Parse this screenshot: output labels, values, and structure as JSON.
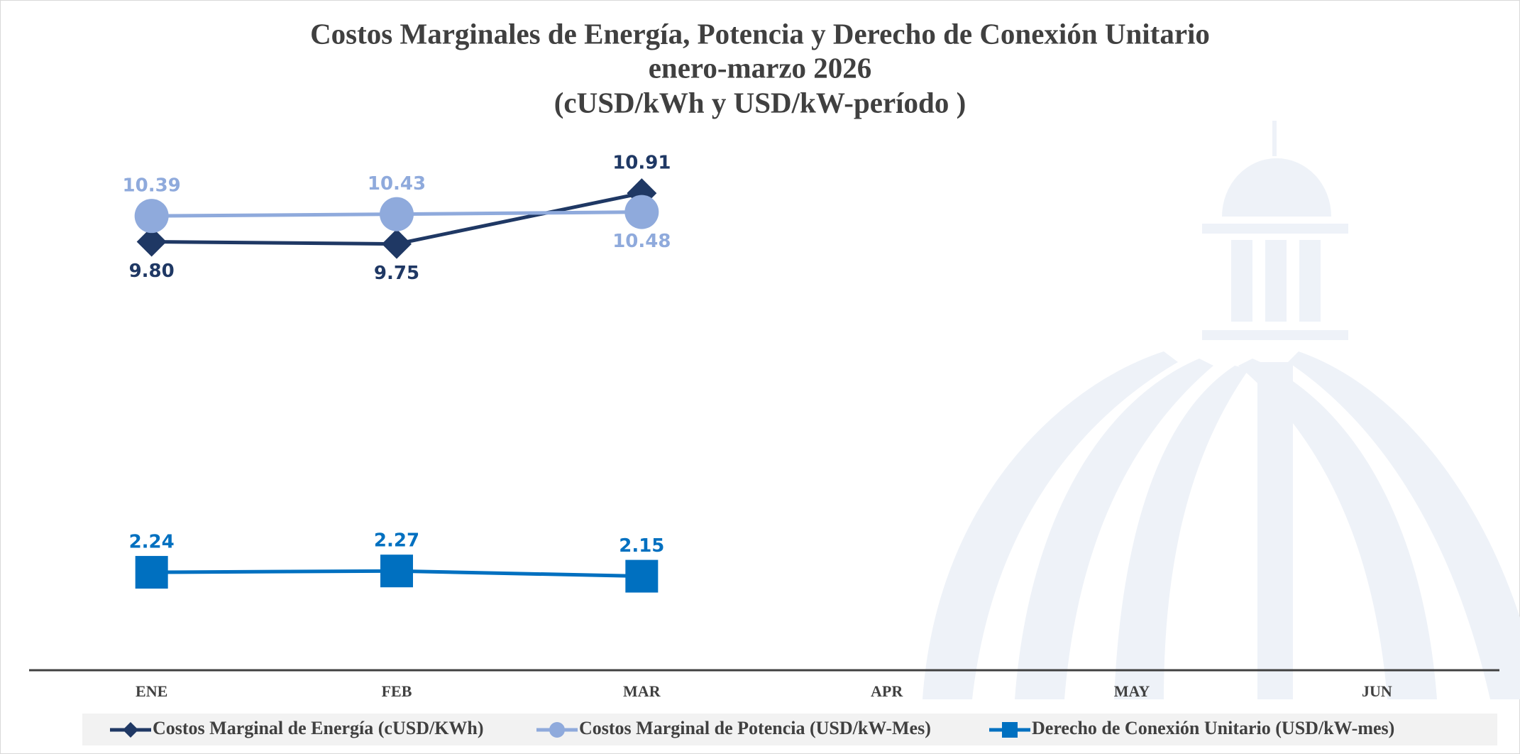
{
  "chart_data": {
    "type": "line",
    "title": "Costos Marginales de Energía, Potencia y Derecho de Conexión Unitario",
    "subtitle": "enero-marzo 2026",
    "units": "(cUSD/kWh y USD/kW-período )",
    "categories": [
      "ENE",
      "FEB",
      "MAR",
      "APR",
      "MAY",
      "JUN"
    ],
    "series": [
      {
        "name": "Costos Marginal de Energía (cUSD/KWh)",
        "color": "#1f3864",
        "marker": "diamond",
        "values": [
          9.8,
          9.75,
          10.91,
          null,
          null,
          null
        ],
        "value_labels": [
          "9.80",
          "9.75",
          "10.91",
          null,
          null,
          null
        ]
      },
      {
        "name": "Costos Marginal de Potencia  (USD/kW-Mes)",
        "color": "#8faadc",
        "marker": "circle",
        "values": [
          10.39,
          10.43,
          10.48,
          null,
          null,
          null
        ],
        "value_labels": [
          "10.39",
          "10.43",
          "10.48",
          null,
          null,
          null
        ]
      },
      {
        "name": "Derecho de Conexión Unitario (USD/kW-mes)",
        "color": "#0070c0",
        "marker": "square",
        "values": [
          2.24,
          2.27,
          2.15,
          null,
          null,
          null
        ],
        "value_labels": [
          "2.24",
          "2.27",
          "2.15",
          null,
          null,
          null
        ]
      }
    ],
    "ylim": [
      0,
      12
    ],
    "legend": "bottom"
  }
}
